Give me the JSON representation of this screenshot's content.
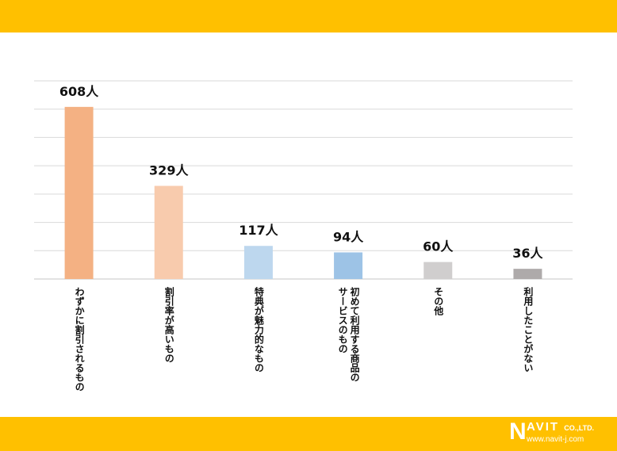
{
  "chart_data": {
    "type": "bar",
    "categories": [
      "わずかに割引されるもの",
      "割引率が高いもの",
      "特典が魅力的なもの",
      "初めて利用する商品のサービスのもの",
      "その他",
      "利用したことがない"
    ],
    "category_lines": [
      [
        "わずかに割引されるもの"
      ],
      [
        "割引率が高いもの"
      ],
      [
        "特典が魅力的なもの"
      ],
      [
        "初めて利用する商品の",
        "サービスのもの"
      ],
      [
        "その他"
      ],
      [
        "利用したことがない"
      ]
    ],
    "values": [
      608,
      329,
      117,
      94,
      60,
      36
    ],
    "data_labels": [
      "608人",
      "329人",
      "117人",
      "94人",
      "60人",
      "36人"
    ],
    "colors": [
      "#F4B183",
      "#F8CBAD",
      "#BDD7EE",
      "#9DC3E6",
      "#D0CECE",
      "#AEAAAA"
    ],
    "ylim": [
      0,
      700
    ],
    "ytick_step": 100,
    "grid": true,
    "title": "",
    "xlabel": "",
    "ylabel": ""
  },
  "logo": {
    "brand": "NAVIT",
    "company": "CO.,LTD.",
    "url": "www.navit-j.com"
  },
  "theme": {
    "band_color": "#FFC000"
  }
}
